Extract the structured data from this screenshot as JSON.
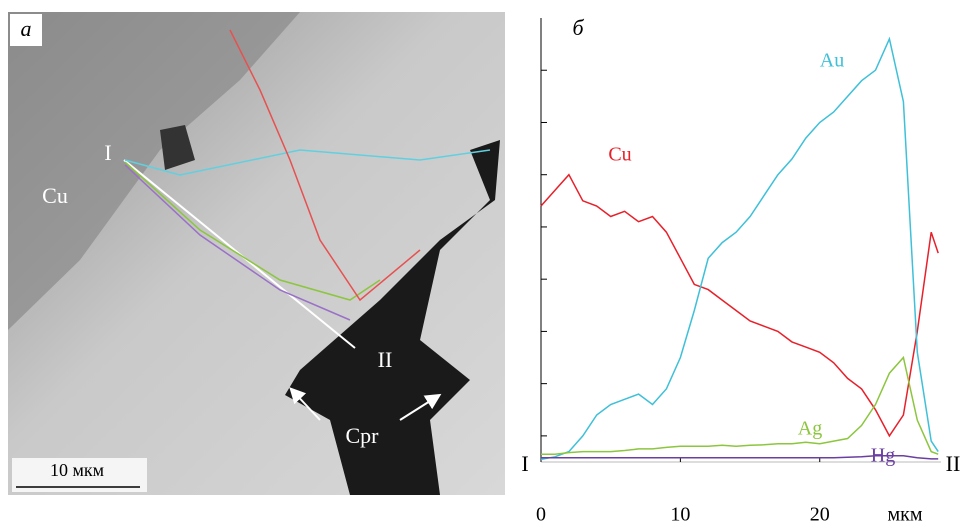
{
  "image_panel": {
    "panel_label": "а",
    "labels": {
      "start": "I",
      "end": "II",
      "matrix": "Cu",
      "inclusion": "Cpr",
      "scale_bar": "10 мкм"
    }
  },
  "chart_data": {
    "type": "line",
    "panel_label": "б",
    "x_unit": "мкм",
    "x_start_label": "I",
    "x_end_label": "II",
    "x": [
      0,
      1,
      2,
      3,
      4,
      5,
      6,
      7,
      8,
      9,
      10,
      11,
      12,
      13,
      14,
      15,
      16,
      17,
      18,
      19,
      20,
      21,
      22,
      23,
      24,
      25,
      26,
      27,
      28,
      28.5
    ],
    "series": [
      {
        "name": "Cu",
        "color": "#e8202a",
        "values": [
          49,
          52,
          55,
          50,
          49,
          47,
          48,
          46,
          47,
          44,
          39,
          34,
          33,
          31,
          29,
          27,
          26,
          25,
          23,
          22,
          21,
          19,
          16,
          14,
          10,
          5,
          9,
          25,
          44,
          40
        ]
      },
      {
        "name": "Au",
        "color": "#3ec0d8",
        "values": [
          0.5,
          1,
          2,
          5,
          9,
          11,
          12,
          13,
          11,
          14,
          20,
          29,
          39,
          42,
          44,
          47,
          51,
          55,
          58,
          62,
          65,
          67,
          70,
          73,
          75,
          81,
          69,
          21,
          4,
          2
        ]
      },
      {
        "name": "Ag",
        "color": "#8cc63e",
        "values": [
          1.5,
          1.5,
          1.8,
          2,
          2,
          2,
          2.2,
          2.5,
          2.5,
          2.8,
          3,
          3,
          3,
          3.2,
          3,
          3.2,
          3.3,
          3.5,
          3.5,
          3.8,
          3.5,
          4,
          4.5,
          7,
          11,
          17,
          20,
          8,
          2,
          1.5
        ]
      },
      {
        "name": "Hg",
        "color": "#6a3fa0",
        "values": [
          0.8,
          0.8,
          0.8,
          0.8,
          0.8,
          0.8,
          0.8,
          0.8,
          0.8,
          0.8,
          0.8,
          0.8,
          0.8,
          0.8,
          0.8,
          0.8,
          0.8,
          0.8,
          0.8,
          0.8,
          0.8,
          0.8,
          0.9,
          1,
          1.2,
          1.2,
          1.2,
          0.8,
          0.6,
          0.6
        ]
      }
    ],
    "xlim": [
      0,
      28.7
    ],
    "xticks": [
      0,
      10,
      20
    ],
    "ylim": [
      0,
      85
    ],
    "yticks": [
      5,
      15,
      25,
      35,
      45,
      55,
      65,
      75
    ]
  }
}
